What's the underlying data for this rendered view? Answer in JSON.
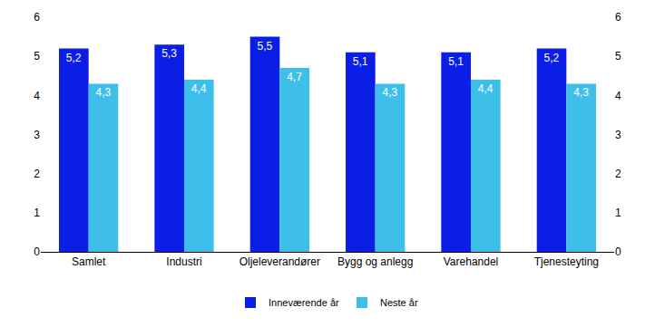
{
  "chart_data": {
    "type": "bar",
    "categories": [
      "Samlet",
      "Industri",
      "Oljeleverandører",
      "Bygg og anlegg",
      "Varehandel",
      "Tjenesteyting"
    ],
    "series": [
      {
        "name": "Inneværende år",
        "color": "#0a1ee6",
        "values": [
          5.2,
          5.3,
          5.5,
          5.1,
          5.1,
          5.2
        ],
        "value_labels": [
          "5,2",
          "5,3",
          "5,5",
          "5,1",
          "5,1",
          "5,2"
        ]
      },
      {
        "name": "Neste år",
        "color": "#3ebfea",
        "values": [
          4.3,
          4.4,
          4.7,
          4.3,
          4.4,
          4.3
        ],
        "value_labels": [
          "4,3",
          "4,4",
          "4,7",
          "4,3",
          "4,4",
          "4,3"
        ]
      }
    ],
    "ylim": [
      0,
      6
    ],
    "yticks": [
      0,
      1,
      2,
      3,
      4,
      5,
      6
    ],
    "y2lim": [
      0,
      6
    ],
    "y2ticks": [
      0,
      1,
      2,
      3,
      4,
      5,
      6
    ],
    "grid": false,
    "legend": "bottom",
    "data_labels": true
  }
}
